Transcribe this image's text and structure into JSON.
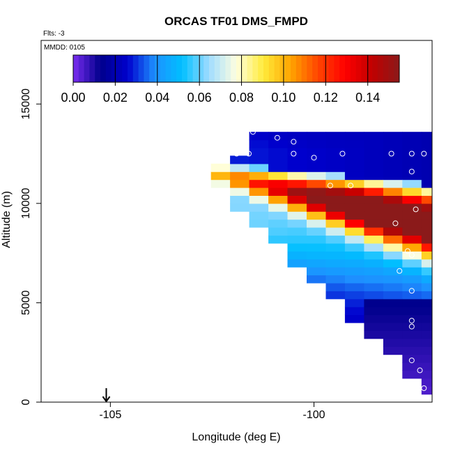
{
  "chart_data": {
    "type": "heatmap",
    "title": "ORCAS TF01 DMS_FMPD",
    "annotations": {
      "flights": "Flts: -3",
      "date": "MMDD: 0105"
    },
    "xlabel": "Longitude (deg E)",
    "ylabel": "Altitude (m)",
    "xlim": [
      -106.7,
      -97.1
    ],
    "ylim": [
      0,
      18200
    ],
    "xticks": [
      -105,
      -100
    ],
    "xtick_labels": [
      "-105",
      "-100"
    ],
    "yticks": [
      0,
      5000,
      10000,
      15000
    ],
    "ytick_labels": [
      "0",
      "5000",
      "10000",
      "15000"
    ],
    "colorbar": {
      "min": 0.0,
      "max": 0.155,
      "ticks": [
        0.0,
        0.02,
        0.04,
        0.06,
        0.08,
        0.1,
        0.12,
        0.14
      ],
      "tick_labels": [
        "0.00",
        "0.02",
        "0.04",
        "0.06",
        "0.08",
        "0.10",
        "0.12",
        "0.14"
      ],
      "colors": [
        "#7a2cf0",
        "#00008b",
        "#0000cd",
        "#1e90ff",
        "#00bfff",
        "#a0dcff",
        "#ffffe0",
        "#ffeb3b",
        "#ffa500",
        "#ff4500",
        "#ff0000",
        "#c00000",
        "#8b1a1a"
      ]
    },
    "field": {
      "description": "DMS concentration gridded by longitude and altitude",
      "lon_start": -103.0,
      "lon_end": -97.3,
      "lon_step": 0.47,
      "alt_start": 0,
      "alt_end": 13600,
      "alt_step": 400,
      "lower_edge": {
        "lon": [
          -103.0,
          -97.3
        ],
        "alt": [
          11800,
          500
        ]
      },
      "plume": {
        "lon": [
          -103.0,
          -97.5
        ],
        "core_alt": [
          11500,
          8800
        ],
        "thickness_m": [
          400,
          1600
        ],
        "peak": 0.152
      }
    },
    "sample_points": [
      [
        -101.5,
        13600
      ],
      [
        -100.9,
        13300
      ],
      [
        -100.5,
        13100
      ],
      [
        -101.9,
        12500
      ],
      [
        -101.6,
        12500
      ],
      [
        -100.5,
        12500
      ],
      [
        -99.3,
        12500
      ],
      [
        -98.1,
        12500
      ],
      [
        -97.6,
        12500
      ],
      [
        -97.3,
        12500
      ],
      [
        -100.0,
        12300
      ],
      [
        -97.6,
        11600
      ],
      [
        -99.6,
        10900
      ],
      [
        -99.1,
        10900
      ],
      [
        -97.5,
        9700
      ],
      [
        -98.0,
        9000
      ],
      [
        -97.7,
        7600
      ],
      [
        -97.6,
        7400
      ],
      [
        -97.9,
        6600
      ],
      [
        -97.6,
        5600
      ],
      [
        -97.6,
        4100
      ],
      [
        -97.6,
        3800
      ],
      [
        -97.6,
        2100
      ],
      [
        -97.4,
        1600
      ],
      [
        -97.6,
        700
      ],
      [
        -97.5,
        700
      ],
      [
        -97.3,
        700
      ]
    ],
    "arrow_marker": {
      "lon": -105.1,
      "alt": 0
    }
  }
}
